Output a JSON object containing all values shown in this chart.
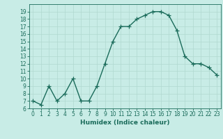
{
  "x": [
    0,
    1,
    2,
    3,
    4,
    5,
    6,
    7,
    8,
    9,
    10,
    11,
    12,
    13,
    14,
    15,
    16,
    17,
    18,
    19,
    20,
    21,
    22,
    23
  ],
  "y": [
    7,
    6.5,
    9,
    7,
    8,
    10,
    7,
    7,
    9,
    12,
    15,
    17,
    17,
    18,
    18.5,
    19,
    19,
    18.5,
    16.5,
    13,
    12,
    12,
    11.5,
    10.5
  ],
  "line_color": "#1a6b5a",
  "marker": "+",
  "marker_size": 4,
  "bg_color": "#c8ece6",
  "grid_color": "#b0d8d0",
  "xlabel": "Humidex (Indice chaleur)",
  "xlim": [
    -0.5,
    23.5
  ],
  "ylim": [
    6,
    20
  ],
  "yticks": [
    6,
    7,
    8,
    9,
    10,
    11,
    12,
    13,
    14,
    15,
    16,
    17,
    18,
    19
  ],
  "xticks": [
    0,
    1,
    2,
    3,
    4,
    5,
    6,
    7,
    8,
    9,
    10,
    11,
    12,
    13,
    14,
    15,
    16,
    17,
    18,
    19,
    20,
    21,
    22,
    23
  ],
  "tick_fontsize": 5.5,
  "xlabel_fontsize": 6.5,
  "line_width": 1.0
}
